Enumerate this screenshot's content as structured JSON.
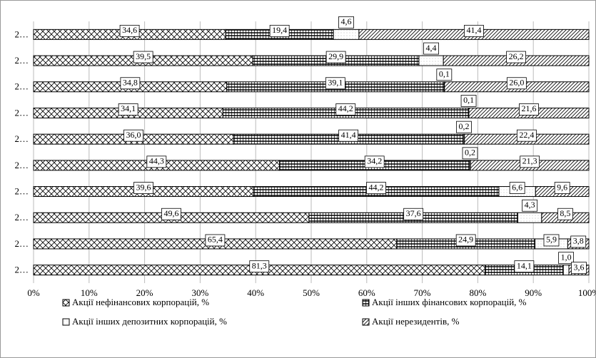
{
  "chart_data": {
    "type": "stacked_bar_horizontal",
    "categories": [
      "2…",
      "2…",
      "2…",
      "2…",
      "2…",
      "2…",
      "2…",
      "2…",
      "2…",
      "2…"
    ],
    "series": [
      {
        "name": "Акції нефінансових корпорацій, %",
        "color": "#000000",
        "pattern": "crosshatch",
        "values": [
          34.6,
          39.5,
          34.8,
          34.1,
          36.0,
          44.3,
          39.6,
          49.6,
          65.4,
          81.3
        ],
        "value_labels": [
          "34,6",
          "39,5",
          "34,8",
          "34,1",
          "36,0",
          "44,3",
          "39,6",
          "49,6",
          "65,4",
          "81,3"
        ]
      },
      {
        "name": "Акції інших фінансових корпорацій, %",
        "color": "#000000",
        "pattern": "grid",
        "values": [
          19.4,
          29.9,
          39.1,
          44.2,
          41.4,
          34.2,
          44.2,
          37.6,
          24.9,
          14.1
        ],
        "value_labels": [
          "19,4",
          "29,9",
          "39,1",
          "44,2",
          "41,4",
          "34,2",
          "44,2",
          "37,6",
          "24,9",
          "14,1"
        ]
      },
      {
        "name": "Акції інших депозитних корпорацій, %",
        "color": "#000000",
        "pattern": "dots",
        "values": [
          4.6,
          4.4,
          0.1,
          0.1,
          0.2,
          0.2,
          6.6,
          4.3,
          5.9,
          1.0
        ],
        "value_labels": [
          "4,6",
          "4,4",
          "0,1",
          "0,1",
          "0,2",
          "0,2",
          "6,6",
          "4,3",
          "5,9",
          "1,0"
        ]
      },
      {
        "name": "Акції нерезидентів, %",
        "color": "#000000",
        "pattern": "diagonal",
        "values": [
          41.4,
          26.2,
          26.0,
          21.6,
          22.4,
          21.3,
          9.6,
          8.5,
          3.8,
          3.6
        ],
        "value_labels": [
          "41,4",
          "26,2",
          "26,0",
          "21,6",
          "22,4",
          "21,3",
          "9,6",
          "8,5",
          "3,8",
          "3,6"
        ]
      }
    ],
    "xlim": [
      0,
      100
    ],
    "xticks": [
      {
        "value": 0,
        "label": "0%"
      },
      {
        "value": 10,
        "label": "10%"
      },
      {
        "value": 20,
        "label": "20%"
      },
      {
        "value": 30,
        "label": "30%"
      },
      {
        "value": 40,
        "label": "40%"
      },
      {
        "value": 50,
        "label": "50%"
      },
      {
        "value": 60,
        "label": "60%"
      },
      {
        "value": 70,
        "label": "70%"
      },
      {
        "value": 80,
        "label": "80%"
      },
      {
        "value": 90,
        "label": "90%"
      },
      {
        "value": 100,
        "label": "100%"
      }
    ],
    "grid": true,
    "legend": "bottom"
  }
}
